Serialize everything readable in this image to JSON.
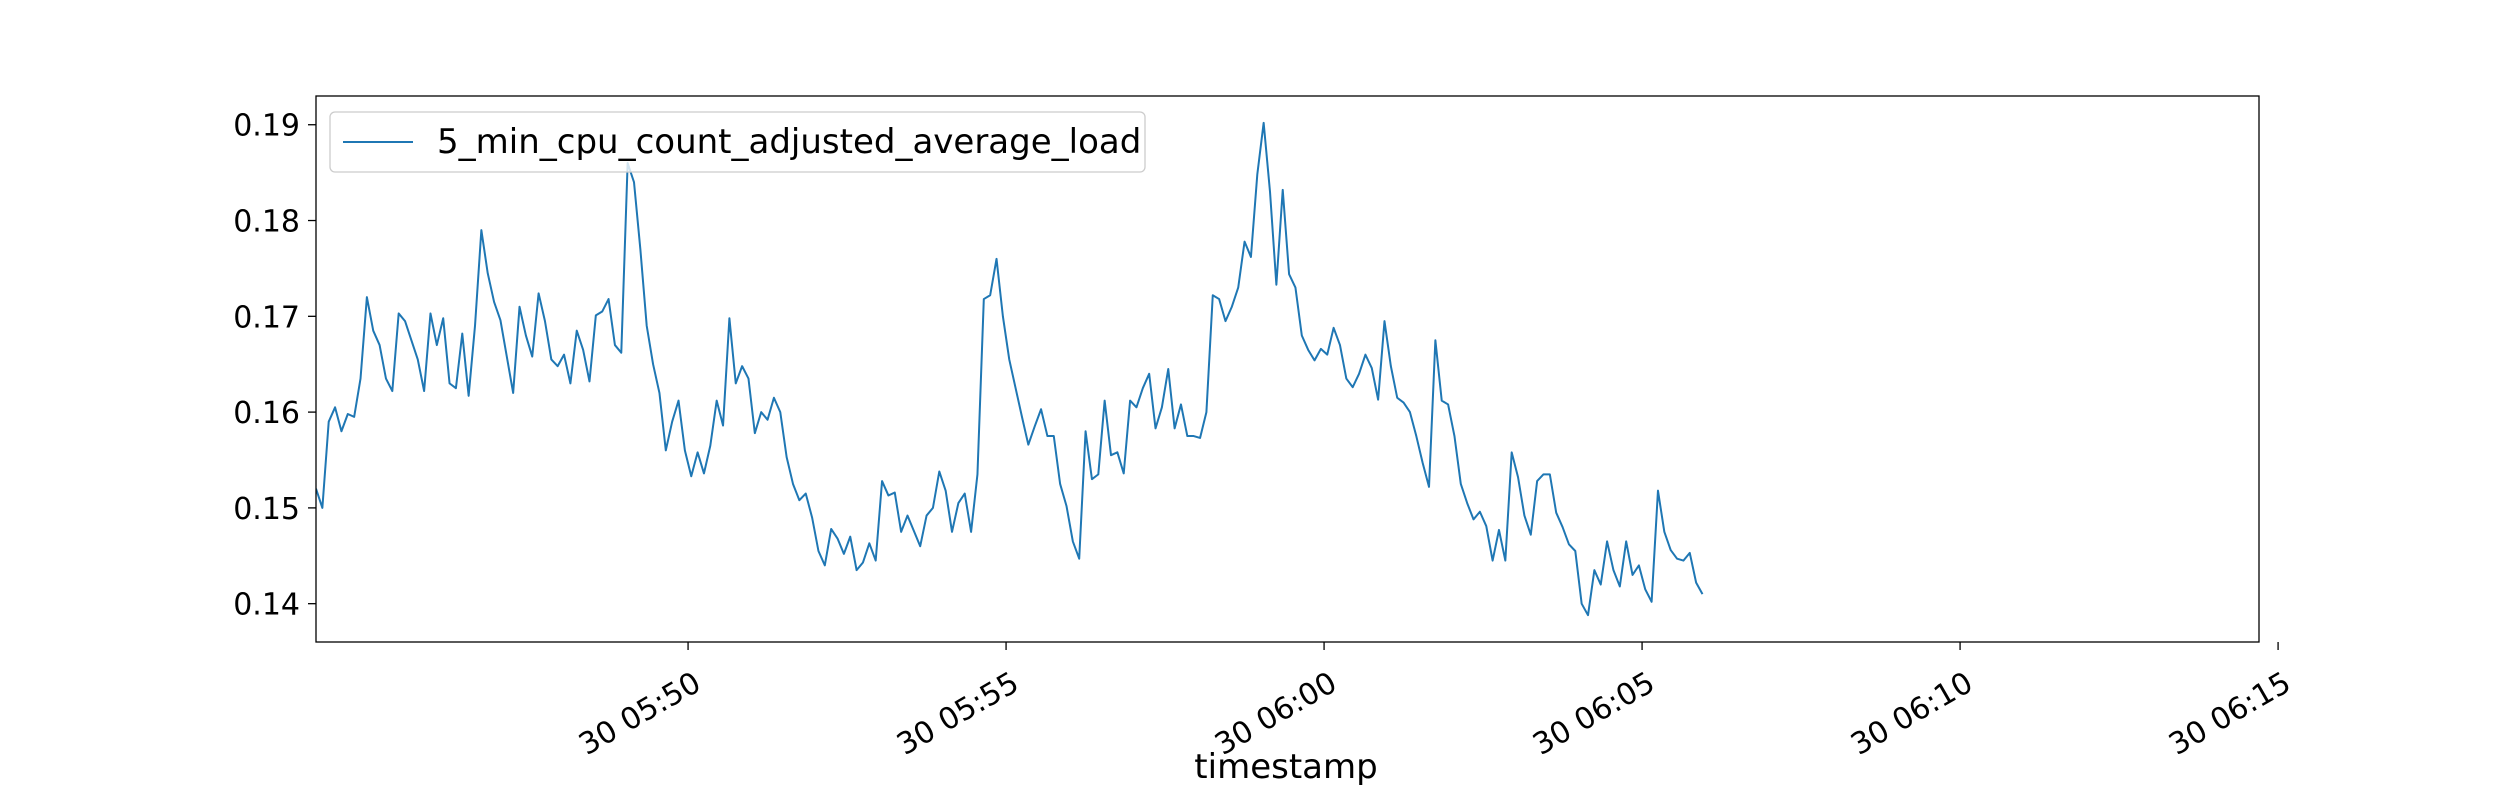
{
  "chart_data": {
    "type": "line",
    "xlabel": "timestamp",
    "ylabel": "",
    "ylim": [
      0.136,
      0.193
    ],
    "xlim_minutes": [
      -15.85,
      14.7
    ],
    "x_start": "2024-01-30T05:45:00",
    "y_ticks": [
      0.14,
      0.15,
      0.16,
      0.17,
      0.18,
      0.19
    ],
    "y_tick_labels": [
      "0.14",
      "0.15",
      "0.16",
      "0.17",
      "0.18",
      "0.19"
    ],
    "x_ticks": [
      {
        "minute": -10,
        "label": "30 05:50"
      },
      {
        "minute": -5,
        "label": "30 05:55"
      },
      {
        "minute": 0,
        "label": "30 06:00"
      },
      {
        "minute": 5,
        "label": "30 06:05"
      },
      {
        "minute": 10,
        "label": "30 06:10"
      },
      {
        "minute": 15,
        "label": "30 06:15"
      }
    ],
    "grid": false,
    "legend_position": "top-left",
    "series": [
      {
        "name": "5_min_cpu_count_adjusted_average_load",
        "color": "#1f77b4",
        "x_step_minutes": 0.1,
        "values": [
          0.152,
          0.15,
          0.159,
          0.1605,
          0.158,
          0.1598,
          0.1595,
          0.1635,
          0.172,
          0.1685,
          0.167,
          0.1635,
          0.1622,
          0.1703,
          0.1695,
          0.1675,
          0.1655,
          0.1622,
          0.1703,
          0.167,
          0.1698,
          0.163,
          0.1625,
          0.1682,
          0.1617,
          0.169,
          0.179,
          0.1745,
          0.1715,
          0.1696,
          0.1658,
          0.162,
          0.171,
          0.168,
          0.1658,
          0.1724,
          0.1695,
          0.1655,
          0.1648,
          0.166,
          0.163,
          0.1685,
          0.1665,
          0.1632,
          0.1701,
          0.1705,
          0.1718,
          0.167,
          0.1662,
          0.186,
          0.184,
          0.177,
          0.169,
          0.165,
          0.162,
          0.156,
          0.159,
          0.1612,
          0.156,
          0.1533,
          0.1558,
          0.1536,
          0.1565,
          0.1612,
          0.1586,
          0.1698,
          0.163,
          0.1648,
          0.1635,
          0.1578,
          0.16,
          0.1592,
          0.1615,
          0.16,
          0.1553,
          0.1525,
          0.1508,
          0.1515,
          0.149,
          0.1455,
          0.144,
          0.1478,
          0.1468,
          0.1452,
          0.147,
          0.1435,
          0.1443,
          0.1463,
          0.1445,
          0.1528,
          0.1513,
          0.1516,
          0.1475,
          0.1492,
          0.1476,
          0.146,
          0.1492,
          0.15,
          0.1538,
          0.1518,
          0.1475,
          0.1505,
          0.1515,
          0.1475,
          0.1535,
          0.1718,
          0.1722,
          0.176,
          0.17,
          0.1655,
          0.1625,
          0.1595,
          0.1566,
          0.1585,
          0.1603,
          0.1575,
          0.1575,
          0.1525,
          0.1502,
          0.1465,
          0.1447,
          0.158,
          0.153,
          0.1535,
          0.1612,
          0.1555,
          0.1558,
          0.1536,
          0.1612,
          0.1605,
          0.1625,
          0.164,
          0.1583,
          0.1605,
          0.1645,
          0.1583,
          0.1608,
          0.1575,
          0.1575,
          0.1573,
          0.16,
          0.1722,
          0.1718,
          0.1695,
          0.171,
          0.173,
          0.1778,
          0.1762,
          0.1848,
          0.1902,
          0.183,
          0.1733,
          0.1832,
          0.1744,
          0.173,
          0.168,
          0.1665,
          0.1654,
          0.1666,
          0.166,
          0.1688,
          0.167,
          0.1635,
          0.1626,
          0.164,
          0.166,
          0.1646,
          0.1613,
          0.1695,
          0.1648,
          0.1615,
          0.161,
          0.16,
          0.1575,
          0.1547,
          0.1522,
          0.1675,
          0.1612,
          0.1608,
          0.1575,
          0.1525,
          0.1505,
          0.1488,
          0.1496,
          0.1481,
          0.1445,
          0.1477,
          0.1445,
          0.1558,
          0.1532,
          0.1492,
          0.1472,
          0.1528,
          0.1535,
          0.1535,
          0.1495,
          0.148,
          0.1462,
          0.1455,
          0.14,
          0.1388,
          0.1435,
          0.142,
          0.1465,
          0.1435,
          0.1418,
          0.1465,
          0.143,
          0.144,
          0.1415,
          0.1402,
          0.1518,
          0.1475,
          0.1456,
          0.1447,
          0.1445,
          0.1453,
          0.1422,
          0.141
        ]
      }
    ]
  }
}
